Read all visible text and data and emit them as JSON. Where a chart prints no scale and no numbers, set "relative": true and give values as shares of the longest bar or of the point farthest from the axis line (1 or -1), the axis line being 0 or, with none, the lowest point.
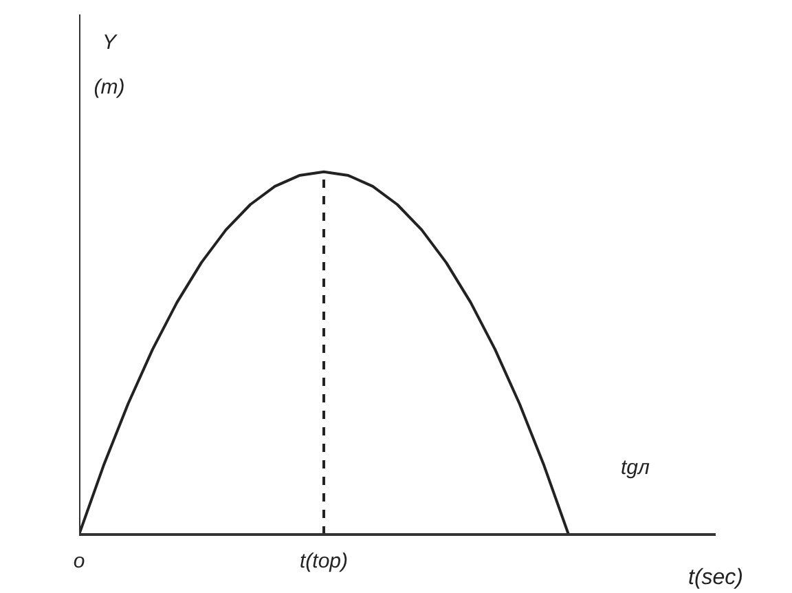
{
  "chart_data": {
    "type": "line",
    "relative": true,
    "xlabel": "t(sec)",
    "ylabel": "Y\n(m)",
    "categories": [
      "o",
      null,
      null,
      null,
      null,
      null,
      null,
      null,
      null,
      null,
      "t(top)",
      null,
      null,
      null,
      null,
      null,
      null,
      null,
      null,
      null,
      null
    ],
    "series": [
      {
        "color": "#222222",
        "values": [
          0,
          0.19,
          0.36,
          0.51,
          0.64,
          0.75,
          0.84,
          0.91,
          0.96,
          0.99,
          1,
          0.99,
          0.96,
          0.91,
          0.84,
          0.75,
          0.64,
          0.51,
          0.36,
          0.19,
          0
        ]
      }
    ],
    "ref_lines": [
      {
        "axis": "x",
        "value": "t(top)",
        "line_style": "dashed",
        "color": "#222222"
      }
    ],
    "annotations": [
      "tgл"
    ],
    "grid": false,
    "marker": "none",
    "line_style": "solid"
  }
}
